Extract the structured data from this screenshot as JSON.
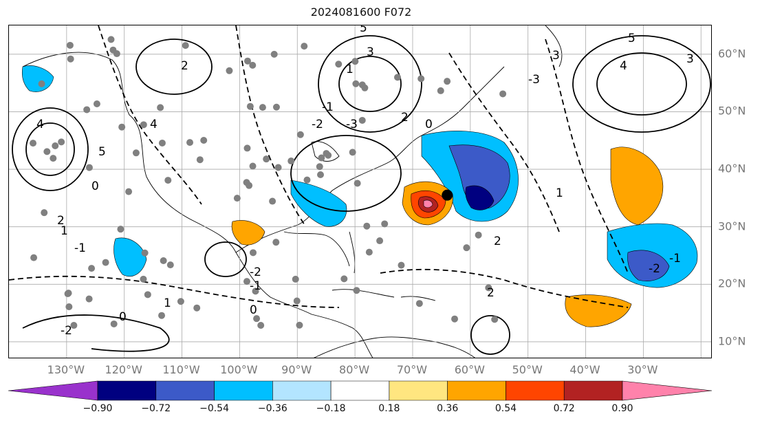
{
  "title": "2024081600 F072",
  "map": {
    "lon_labels": [
      "130°W",
      "120°W",
      "110°W",
      "100°W",
      "90°W",
      "80°W",
      "70°W",
      "60°W",
      "50°W",
      "40°W",
      "30°W"
    ],
    "lat_labels": [
      "60°N",
      "50°N",
      "40°N",
      "30°N",
      "20°N",
      "10°N"
    ],
    "extent": {
      "lon": [
        -140,
        -18
      ],
      "lat": [
        7,
        65
      ]
    },
    "gridlines": true,
    "contour_labels": [
      "0",
      "2",
      "4",
      "5",
      "3",
      "1",
      "-1",
      "-2",
      "-3",
      "2",
      "0",
      "5",
      "4",
      "3",
      "0",
      "-1",
      "2",
      "1",
      "0",
      "-2",
      "1",
      "0",
      "-1",
      "-2",
      "3",
      "-3",
      "4",
      "5",
      "-2",
      "-1",
      "2",
      "1",
      "2"
    ],
    "marked_point": {
      "lon": -64,
      "lat": 35.5
    }
  },
  "colorbar": {
    "ticks": [
      "−0.90",
      "−0.72",
      "−0.54",
      "−0.36",
      "−0.18",
      "0.18",
      "0.36",
      "0.54",
      "0.72",
      "0.90"
    ],
    "colors": [
      "#9932cc",
      "#000080",
      "#3c5ac8",
      "#00bfff",
      "#b3e5ff",
      "#ffffff",
      "#ffe680",
      "#ffa500",
      "#ff4500",
      "#b22222",
      "#ff82ab"
    ],
    "extend": "both"
  },
  "palette": {
    "neg_strong": "#000080",
    "neg_mid": "#3c5ac8",
    "neg_light": "#00bfff",
    "pos_light": "#ffa500",
    "pos_mid": "#ff4500",
    "pos_strong": "#b22222",
    "pos_peak": "#ff82ab",
    "dots": "#808080",
    "grid": "#aaaaaa"
  }
}
